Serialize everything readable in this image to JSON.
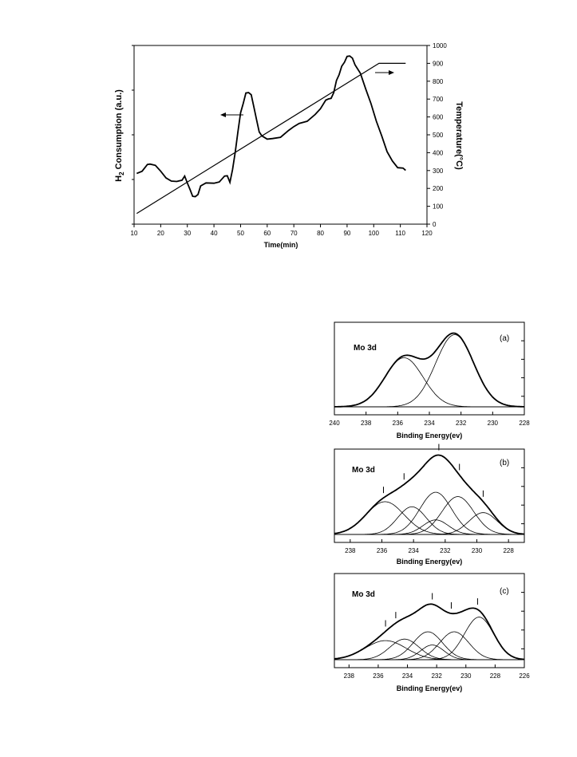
{
  "chart_data": [
    {
      "type": "line",
      "xlabel": "Time(min)",
      "ylabel_left": "H2 Consumption (a.u.)",
      "ylabel_right": "Temperature(°C)",
      "xlim": [
        10,
        120
      ],
      "xticks": [
        10,
        20,
        30,
        40,
        50,
        60,
        70,
        80,
        90,
        100,
        110,
        120
      ],
      "ylim_right": [
        0,
        1000
      ],
      "yticks_right": [
        0,
        100,
        200,
        300,
        400,
        500,
        600,
        700,
        800,
        900,
        1000
      ],
      "series": [
        {
          "role": "H2 consumption (left axis)",
          "x": [
            11,
            13,
            15,
            16,
            18,
            20,
            22,
            24,
            26,
            28,
            29,
            30,
            31,
            32,
            33,
            34,
            35,
            37,
            40,
            42,
            44,
            45,
            46,
            47,
            48,
            49,
            50,
            51,
            52,
            53,
            54,
            55,
            56,
            57,
            58,
            60,
            62,
            65,
            68,
            70,
            72,
            75,
            78,
            80,
            82,
            83,
            84,
            85,
            86,
            87,
            88,
            89,
            90,
            91,
            92,
            93,
            95,
            97,
            99,
            101,
            103,
            105,
            107,
            109,
            111,
            112
          ],
          "y": [
            280,
            300,
            330,
            340,
            325,
            300,
            255,
            245,
            235,
            250,
            265,
            235,
            190,
            160,
            150,
            170,
            210,
            235,
            225,
            240,
            265,
            275,
            230,
            310,
            400,
            520,
            620,
            680,
            730,
            740,
            720,
            660,
            580,
            520,
            490,
            480,
            475,
            490,
            520,
            550,
            560,
            580,
            610,
            650,
            690,
            705,
            700,
            740,
            800,
            840,
            880,
            910,
            935,
            945,
            925,
            895,
            840,
            760,
            670,
            580,
            490,
            410,
            350,
            320,
            310,
            305
          ]
        },
        {
          "role": "Temperature program (right axis)",
          "x": [
            11,
            102,
            112
          ],
          "y": [
            60,
            900,
            900
          ]
        }
      ],
      "annotations": [
        "arrow pointing left from first peak (left axis)",
        "arrow pointing right near temperature plateau (right axis)"
      ]
    },
    {
      "type": "line",
      "panel": "(a)",
      "label": "Mo 3d",
      "xlabel": "Binding Energy(ev)",
      "xlim": [
        240,
        228
      ],
      "xticks": [
        240,
        238,
        236,
        234,
        232,
        230,
        228
      ],
      "series": [
        {
          "role": "envelope",
          "components": [
            [
              235.6,
              0.68,
              1.2
            ],
            [
              232.4,
              1.0,
              1.2
            ]
          ]
        },
        {
          "role": "component",
          "components": [
            [
              235.6,
              0.68,
              1.2
            ]
          ]
        },
        {
          "role": "component",
          "components": [
            [
              232.4,
              1.0,
              1.2
            ]
          ]
        }
      ]
    },
    {
      "type": "line",
      "panel": "(b)",
      "label": "Mo 3d",
      "xlabel": "Binding Energy(ev)",
      "xlim": [
        239,
        227
      ],
      "xticks": [
        238,
        236,
        234,
        232,
        230,
        228
      ],
      "series": [
        {
          "role": "envelope",
          "components": [
            [
              235.8,
              0.45,
              1.2
            ],
            [
              234.1,
              0.38,
              0.9
            ],
            [
              232.6,
              0.58,
              1.0
            ],
            [
              232.6,
              0.2,
              0.8
            ],
            [
              231.2,
              0.52,
              1.0
            ],
            [
              229.6,
              0.3,
              0.9
            ]
          ]
        },
        {
          "role": "component",
          "components": [
            [
              235.8,
              0.45,
              1.2
            ]
          ]
        },
        {
          "role": "component",
          "components": [
            [
              234.1,
              0.38,
              0.9
            ]
          ]
        },
        {
          "role": "component",
          "components": [
            [
              232.6,
              0.58,
              1.0
            ]
          ]
        },
        {
          "role": "component",
          "components": [
            [
              232.6,
              0.2,
              0.8
            ]
          ]
        },
        {
          "role": "component",
          "components": [
            [
              231.2,
              0.52,
              1.0
            ]
          ]
        },
        {
          "role": "component",
          "components": [
            [
              229.6,
              0.3,
              0.9
            ]
          ]
        }
      ],
      "markers": [
        235.9,
        234.6,
        232.4,
        231.1,
        229.6
      ]
    },
    {
      "type": "line",
      "panel": "(c)",
      "label": "Mo 3d",
      "xlabel": "Binding Energy(ev)",
      "xlim": [
        239,
        226
      ],
      "xticks": [
        238,
        236,
        234,
        232,
        230,
        228,
        226
      ],
      "series": [
        {
          "role": "envelope",
          "components": [
            [
              235.5,
              0.26,
              1.4
            ],
            [
              234.2,
              0.28,
              1.0
            ],
            [
              232.6,
              0.38,
              1.0
            ],
            [
              232.3,
              0.2,
              0.8
            ],
            [
              230.8,
              0.38,
              1.0
            ],
            [
              229.1,
              0.58,
              1.0
            ]
          ]
        },
        {
          "role": "component",
          "components": [
            [
              235.5,
              0.26,
              1.4
            ]
          ]
        },
        {
          "role": "component",
          "components": [
            [
              234.2,
              0.28,
              1.0
            ]
          ]
        },
        {
          "role": "component",
          "components": [
            [
              232.6,
              0.38,
              1.0
            ]
          ]
        },
        {
          "role": "component",
          "components": [
            [
              232.3,
              0.2,
              0.8
            ]
          ]
        },
        {
          "role": "component",
          "components": [
            [
              230.8,
              0.38,
              1.0
            ]
          ]
        },
        {
          "role": "component",
          "components": [
            [
              229.1,
              0.58,
              1.0
            ]
          ]
        }
      ],
      "markers": [
        235.5,
        234.8,
        232.3,
        231.0,
        229.2
      ]
    }
  ],
  "text": {
    "tpr_xlabel": "Time(min)",
    "tpr_ylabel_left_main": "H",
    "tpr_ylabel_left_sub": "2",
    "tpr_ylabel_left_rest": " Consumption (a.u.)",
    "tpr_ylabel_right": "Temperature(°C)",
    "xps_label": "Mo 3d",
    "xps_xlabel": "Binding Energy(ev)",
    "panel_a": "(a)",
    "panel_b": "(b)",
    "panel_c": "(c)"
  }
}
